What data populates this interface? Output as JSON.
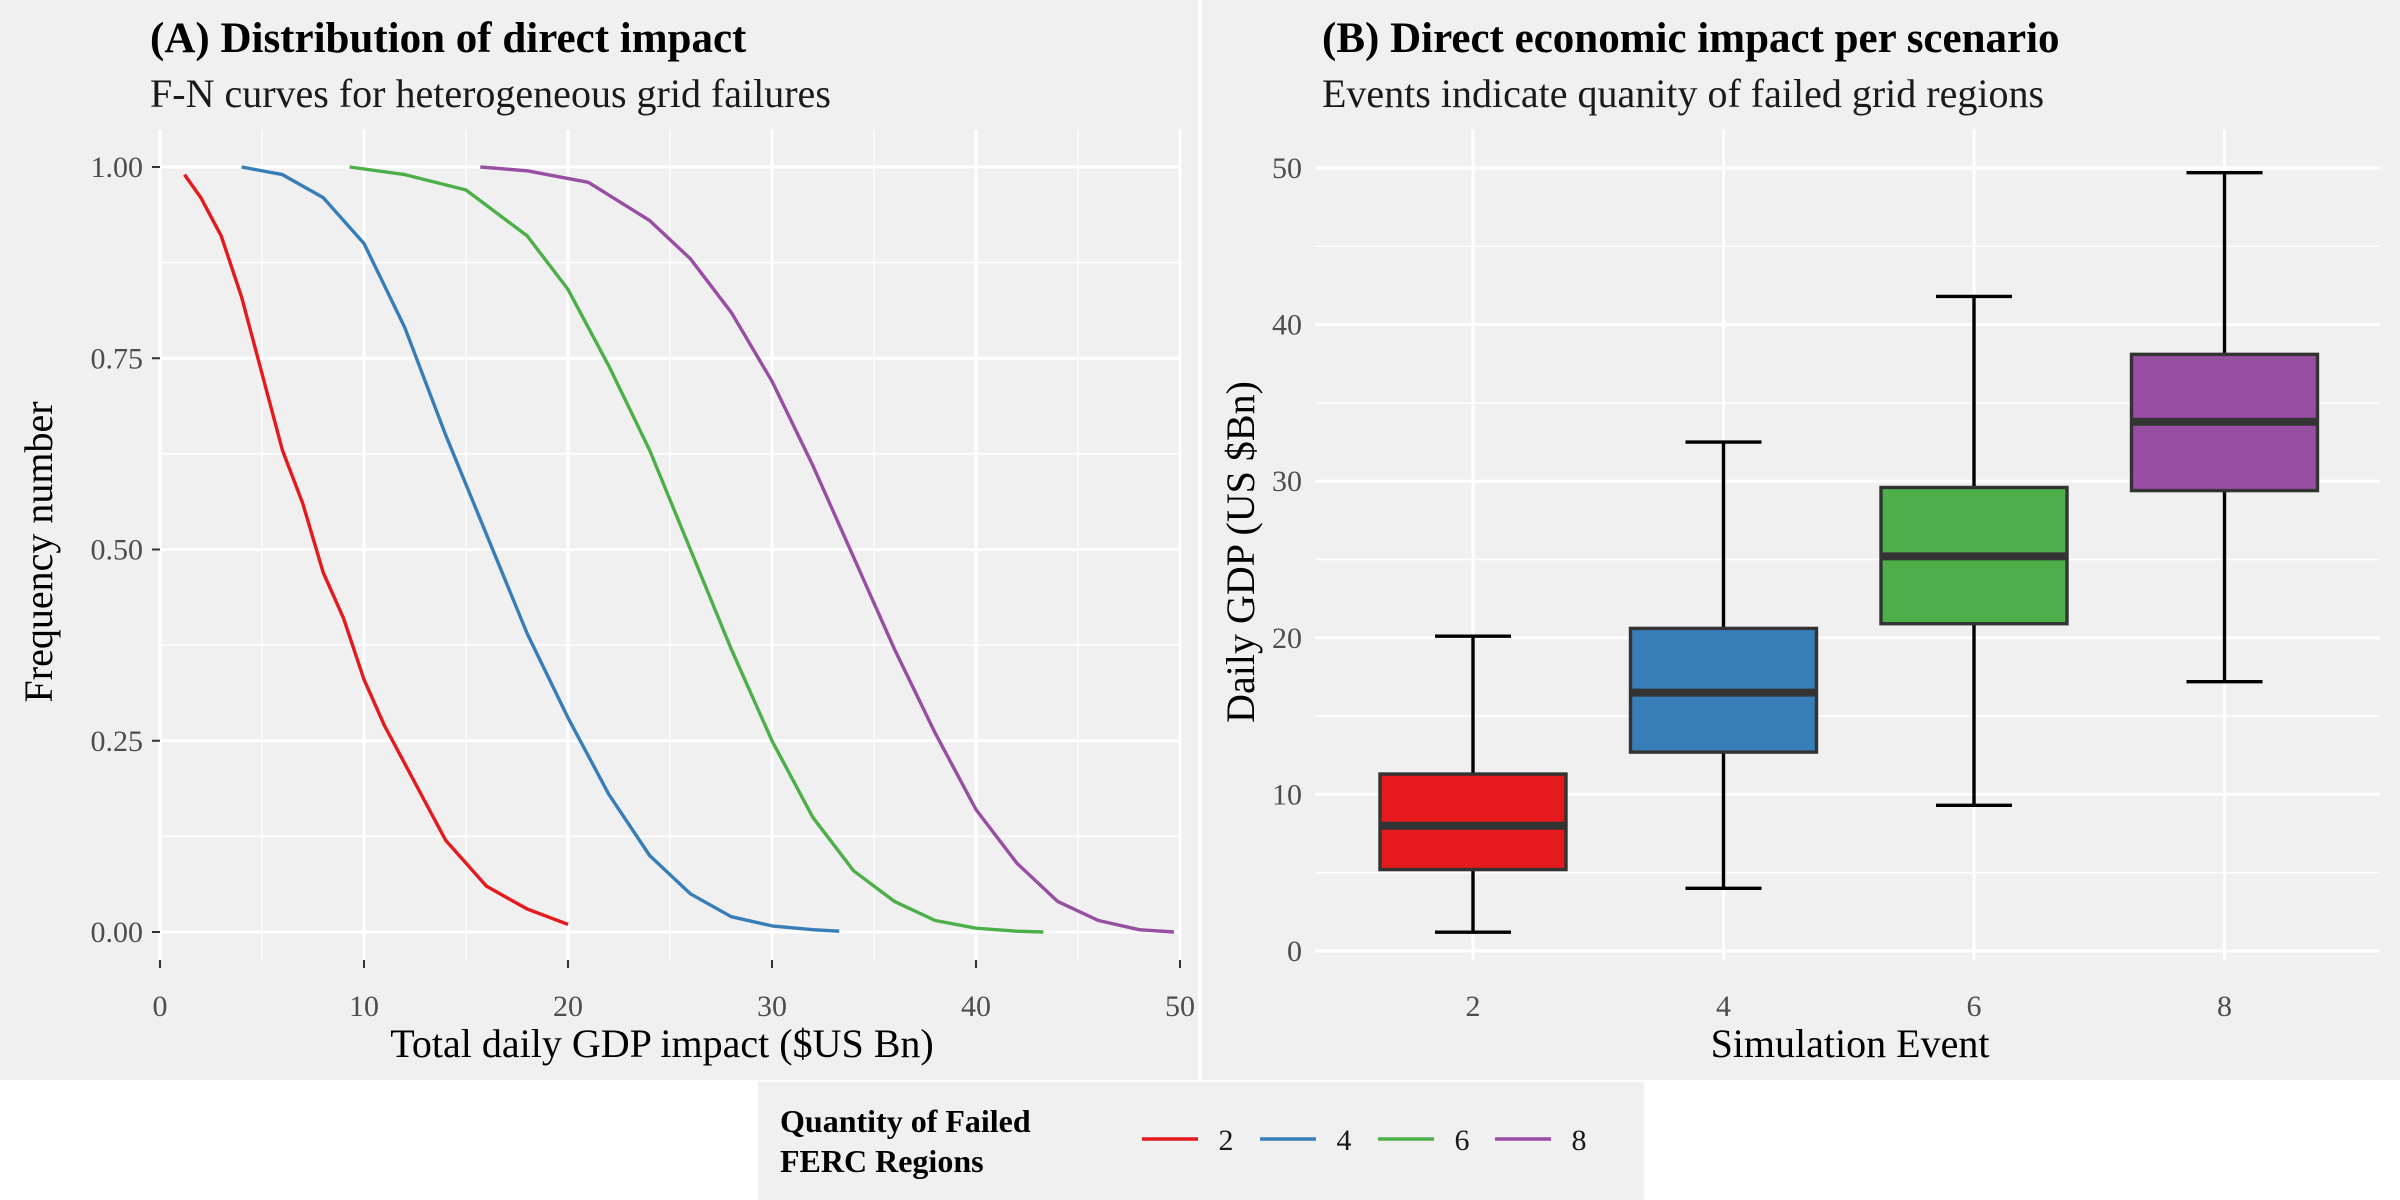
{
  "chart_data": [
    {
      "panel": "A",
      "type": "line",
      "title": "(A) Distribution of direct impact",
      "subtitle": "F-N curves for heterogeneous grid failures",
      "xlabel": "Total daily GDP impact ($US Bn)",
      "ylabel": "Frequency number",
      "xlim": [
        0,
        50
      ],
      "ylim": [
        0,
        1
      ],
      "xticks": [
        "0",
        "10",
        "20",
        "30",
        "40",
        "50"
      ],
      "yticks": [
        "0.00",
        "0.25",
        "0.50",
        "0.75",
        "1.00"
      ],
      "grid": true,
      "series": [
        {
          "name": "2",
          "color": "#E41A1C",
          "x": [
            1.2,
            2.0,
            3.0,
            4.0,
            5.0,
            6.0,
            7.0,
            8.0,
            9.0,
            10.0,
            11.0,
            12.0,
            13.0,
            14.0,
            15.0,
            16.0,
            17.0,
            18.0,
            19.0,
            20.0
          ],
          "y": [
            0.99,
            0.96,
            0.91,
            0.83,
            0.73,
            0.63,
            0.56,
            0.47,
            0.41,
            0.33,
            0.27,
            0.22,
            0.17,
            0.12,
            0.09,
            0.06,
            0.045,
            0.03,
            0.02,
            0.01
          ]
        },
        {
          "name": "4",
          "color": "#377EB8",
          "x": [
            4.0,
            6.0,
            8.0,
            10.0,
            12.0,
            14.0,
            16.0,
            18.0,
            20.0,
            22.0,
            24.0,
            26.0,
            28.0,
            30.0,
            32.0,
            33.3
          ],
          "y": [
            1.0,
            0.99,
            0.96,
            0.9,
            0.79,
            0.65,
            0.52,
            0.39,
            0.28,
            0.18,
            0.1,
            0.05,
            0.02,
            0.008,
            0.003,
            0.001
          ]
        },
        {
          "name": "6",
          "color": "#4DAF4A",
          "x": [
            9.3,
            12.0,
            15.0,
            18.0,
            20.0,
            22.0,
            24.0,
            26.0,
            28.0,
            30.0,
            32.0,
            34.0,
            36.0,
            38.0,
            40.0,
            42.0,
            43.3
          ],
          "y": [
            1.0,
            0.99,
            0.97,
            0.91,
            0.84,
            0.74,
            0.63,
            0.5,
            0.37,
            0.25,
            0.15,
            0.08,
            0.04,
            0.015,
            0.005,
            0.001,
            0.0
          ]
        },
        {
          "name": "8",
          "color": "#984EA3",
          "x": [
            15.7,
            18.0,
            21.0,
            24.0,
            26.0,
            28.0,
            30.0,
            32.0,
            34.0,
            36.0,
            38.0,
            40.0,
            42.0,
            44.0,
            46.0,
            48.0,
            49.7
          ],
          "y": [
            1.0,
            0.995,
            0.98,
            0.93,
            0.88,
            0.81,
            0.72,
            0.61,
            0.49,
            0.37,
            0.26,
            0.16,
            0.09,
            0.04,
            0.015,
            0.003,
            0.0
          ]
        }
      ]
    },
    {
      "panel": "B",
      "type": "box",
      "title": "(B) Direct economic impact per scenario",
      "subtitle": "Events indicate quanity of failed grid regions",
      "xlabel": "Simulation Event",
      "ylabel": "Daily GDP (US $Bn)",
      "ylim": [
        0,
        50
      ],
      "yticks": [
        "0",
        "10",
        "20",
        "30",
        "40",
        "50"
      ],
      "grid": true,
      "categories": [
        "2",
        "4",
        "6",
        "8"
      ],
      "boxes": [
        {
          "category": "2",
          "color": "#E41A1C",
          "min": 1.2,
          "q1": 5.2,
          "median": 8.0,
          "q3": 11.3,
          "max": 20.1
        },
        {
          "category": "4",
          "color": "#377EB8",
          "min": 4.0,
          "q1": 12.7,
          "median": 16.5,
          "q3": 20.6,
          "max": 32.5
        },
        {
          "category": "6",
          "color": "#4DAF4A",
          "min": 9.3,
          "q1": 20.9,
          "median": 25.2,
          "q3": 29.6,
          "max": 41.8
        },
        {
          "category": "8",
          "color": "#984EA3",
          "min": 17.2,
          "q1": 29.4,
          "median": 33.8,
          "q3": 38.1,
          "max": 49.7
        }
      ]
    }
  ],
  "legend": {
    "title_line1": "Quantity of Failed",
    "title_line2": "FERC Regions",
    "placement": "bottom-center",
    "items": [
      {
        "label": "2",
        "color": "#E41A1C"
      },
      {
        "label": "4",
        "color": "#377EB8"
      },
      {
        "label": "6",
        "color": "#4DAF4A"
      },
      {
        "label": "8",
        "color": "#984EA3"
      }
    ]
  }
}
